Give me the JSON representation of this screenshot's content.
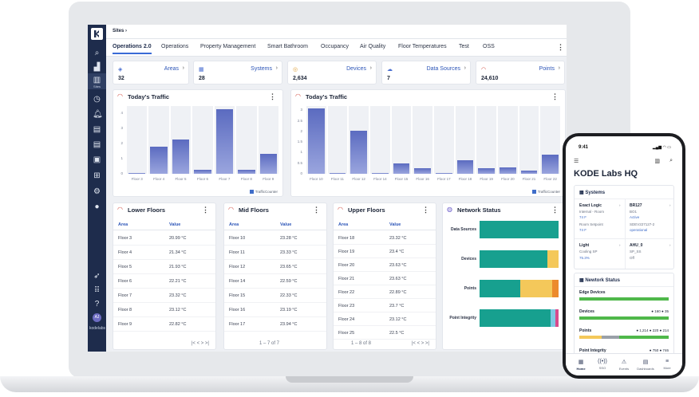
{
  "app": {
    "breadcrumb": "Sites",
    "sidebar_label": "Sites",
    "avatar": "AJ",
    "brand": "kodelabs"
  },
  "tabs": [
    "Operations 2.0",
    "Operations",
    "Property Management",
    "Smart Bathroom",
    "Occupancy",
    "Air Quality",
    "Floor Temperatures",
    "Test",
    "OSS"
  ],
  "stats": [
    {
      "label": "Areas",
      "value": "32"
    },
    {
      "label": "Systems",
      "value": "28"
    },
    {
      "label": "Devices",
      "value": "2,634"
    },
    {
      "label": "Data Sources",
      "value": "7"
    },
    {
      "label": "Points",
      "value": "24,610"
    }
  ],
  "traffic_left": {
    "title": "Today's Traffic",
    "legend": "TrafficCounter"
  },
  "traffic_right": {
    "title": "Today's Traffic",
    "legend": "TrafficCounter"
  },
  "chart_data": [
    {
      "type": "bar",
      "title": "Today's Traffic",
      "categories": [
        "Floor 3",
        "Floor 4",
        "Floor 5",
        "Floor 6",
        "Floor 7",
        "Floor 8",
        "Floor 9"
      ],
      "values": [
        0.05,
        1.8,
        2.3,
        0.25,
        4.3,
        0.25,
        1.3
      ],
      "ylim": [
        0,
        4.5
      ],
      "yticks": [
        "0",
        "1",
        "2",
        "3",
        "4"
      ],
      "series": [
        {
          "name": "TrafficCounter"
        }
      ]
    },
    {
      "type": "bar",
      "title": "Today's Traffic",
      "categories": [
        "Floor 10",
        "Floor 11",
        "Floor 12",
        "Floor 14",
        "Floor 15",
        "Floor 16",
        "Floor 17",
        "Floor 18",
        "Floor 19",
        "Floor 20",
        "Floor 21",
        "Floor 22"
      ],
      "values": [
        3.1,
        0,
        2.05,
        0,
        0.5,
        0.25,
        0,
        0.65,
        0.25,
        0.3,
        0.15,
        0.9
      ],
      "ylim": [
        0,
        3.2
      ],
      "yticks": [
        "0",
        "0.5",
        "1",
        "1.5",
        "2",
        "2.5",
        "3"
      ],
      "series": [
        {
          "name": "TrafficCounter"
        }
      ]
    }
  ],
  "lower": {
    "title": "Lower Floors",
    "col_area": "Area",
    "col_value": "Value",
    "rows": [
      [
        "Floor 3",
        "20.99 °C"
      ],
      [
        "Floor 4",
        "21.34 °C"
      ],
      [
        "Floor 5",
        "21.93 °C"
      ],
      [
        "Floor 6",
        "22.21 °C"
      ],
      [
        "Floor 7",
        "23.32 °C"
      ],
      [
        "Floor 8",
        "23.12 °C"
      ],
      [
        "Floor 9",
        "22.82 °C"
      ]
    ],
    "pager": "|<   <   >   >|"
  },
  "mid": {
    "title": "Mid Floors",
    "col_area": "Area",
    "col_value": "Value",
    "rows": [
      [
        "Floor 10",
        "23.28 °C"
      ],
      [
        "Floor 11",
        "23.33 °C"
      ],
      [
        "Floor 12",
        "23.65 °C"
      ],
      [
        "Floor 14",
        "22.59 °C"
      ],
      [
        "Floor 15",
        "22.33 °C"
      ],
      [
        "Floor 16",
        "23.19 °C"
      ],
      [
        "Floor 17",
        "23.94 °C"
      ]
    ],
    "pager": "1 – 7 of 7"
  },
  "upper": {
    "title": "Upper Floors",
    "col_area": "Area",
    "col_value": "Value",
    "rows": [
      [
        "Floor 18",
        "23.32 °C"
      ],
      [
        "Floor 19",
        "23.4 °C"
      ],
      [
        "Floor 20",
        "23.63 °C"
      ],
      [
        "Floor 21",
        "23.63 °C"
      ],
      [
        "Floor 22",
        "22.89 °C"
      ],
      [
        "Floor 23",
        "23.7 °C"
      ],
      [
        "Floor 24",
        "23.12 °C"
      ],
      [
        "Floor 25",
        "22.5 °C"
      ]
    ],
    "pager": "1 – 8 of 8",
    "pager_icons": "|<   <   >   >|"
  },
  "network": {
    "title": "Network Status",
    "rows": [
      {
        "label": "Data Sources",
        "segments": [
          {
            "share": 1.0,
            "color": "#17a08f"
          }
        ]
      },
      {
        "label": "Devices",
        "segments": [
          {
            "share": 0.86,
            "color": "#17a08f"
          },
          {
            "share": 0.14,
            "color": "#f4c85a"
          }
        ]
      },
      {
        "label": "Points",
        "segments": [
          {
            "share": 0.52,
            "color": "#17a08f"
          },
          {
            "share": 0.4,
            "color": "#f4c85a"
          },
          {
            "share": 0.08,
            "color": "#ec8a2c"
          }
        ]
      },
      {
        "label": "Point Integrity",
        "segments": [
          {
            "share": 0.9,
            "color": "#17a08f"
          },
          {
            "share": 0.06,
            "color": "#7ec8e3"
          },
          {
            "share": 0.04,
            "color": "#d94a8c"
          }
        ]
      }
    ]
  },
  "phone": {
    "time": "9:41",
    "signal": "▂▄▆ ◠ ▭",
    "title": "KODE Labs HQ",
    "systems": {
      "title": "Systems",
      "items": [
        {
          "name": "Exact Logic",
          "sub": "Internal - Room",
          "val": "74 F",
          "sub2": "Room Setpoint",
          "val2": "74 F"
        },
        {
          "name": "BR127",
          "sub": "BO1",
          "val": "Active",
          "sub2": "SDEV227127-2",
          "val2": "operational"
        },
        {
          "name": "Light",
          "sub": "Cooling SP",
          "val": "75.3%"
        },
        {
          "name": "AHU_0",
          "sub": "SP_SS",
          "val": "Off"
        }
      ]
    },
    "network": {
      "title": "Newtork Status",
      "edge": "Edge Devices",
      "devices": "Devices",
      "devices_counts": "● 160  ● 35",
      "points": "Points",
      "points_counts": "● 1,214  ● 220  ● 214",
      "integrity": "Point Integrity",
      "integrity_counts": "● 750  ● 746"
    },
    "nav": [
      {
        "icon": "▦",
        "label": "Home"
      },
      {
        "icon": "((•))",
        "label": "SSO"
      },
      {
        "icon": "⚠",
        "label": "Events"
      },
      {
        "icon": "▤",
        "label": "Dashboards"
      },
      {
        "icon": "≡",
        "label": "More"
      }
    ]
  },
  "colors": {
    "sidebar": "#1e2c4c",
    "accent": "#3a6bd6",
    "bar": "#6170c4",
    "teal": "#17a08f",
    "yellow": "#f4c85a"
  }
}
